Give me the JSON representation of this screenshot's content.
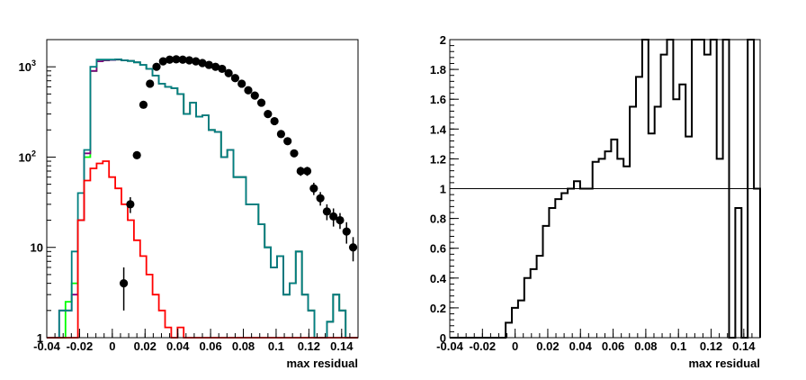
{
  "chart_data": [
    {
      "type": "histogram",
      "xlabel": "max residual",
      "xlim": [
        -0.04,
        0.15
      ],
      "xticks": [
        "-0.04",
        "-0.02",
        "0",
        "0.02",
        "0.04",
        "0.06",
        "0.08",
        "0.1",
        "0.12",
        "0.14"
      ],
      "yscale": "log",
      "ylim": [
        1,
        2000
      ],
      "yticks": [
        "1",
        "10",
        "10^2",
        "10^3"
      ],
      "grid": false,
      "bin_width": 0.0038,
      "series": [
        {
          "type": "step",
          "color": "#00ff00",
          "values": [
            1,
            1,
            1,
            2.5,
            4,
            20,
            100,
            900,
            1150,
            1180,
            1190,
            1200,
            1180,
            1160,
            1120,
            1050,
            950,
            800,
            650,
            600,
            580,
            500,
            300,
            400,
            280,
            290,
            200,
            190,
            100,
            120,
            60,
            60,
            30,
            30,
            18,
            10,
            6,
            8,
            3,
            4,
            9,
            3,
            2,
            1,
            1,
            1.5,
            3,
            2,
            1,
            1
          ]
        },
        {
          "type": "step",
          "color": "#800080",
          "values": [
            1,
            1,
            2,
            2,
            3,
            20,
            110,
            900,
            1150,
            1180,
            1190,
            1200,
            1180,
            1160,
            1120,
            1050,
            950,
            800,
            650,
            600,
            580,
            500,
            300,
            400,
            280,
            290,
            200,
            190,
            100,
            120,
            60,
            60,
            30,
            30,
            18,
            10,
            6,
            8,
            3,
            4,
            9,
            3,
            2,
            1,
            1,
            1.5,
            3,
            2,
            1,
            1
          ]
        },
        {
          "type": "step",
          "color": "#008080",
          "values": [
            1,
            1,
            2,
            2,
            9,
            40,
            120,
            1000,
            1200,
            1200,
            1200,
            1210,
            1180,
            1160,
            1120,
            1050,
            950,
            800,
            650,
            600,
            580,
            500,
            300,
            400,
            280,
            290,
            200,
            190,
            100,
            120,
            60,
            60,
            30,
            30,
            18,
            10,
            6,
            8,
            3,
            4,
            9,
            3,
            2,
            1,
            1,
            1.5,
            3,
            2,
            1,
            1
          ]
        },
        {
          "type": "step",
          "color": "#ff0000",
          "values": [
            1,
            1,
            1,
            1,
            1,
            20,
            55,
            75,
            85,
            90,
            60,
            45,
            30,
            20,
            12,
            8,
            5,
            3,
            2,
            1.3,
            1,
            1.3,
            1,
            1,
            1,
            1,
            1,
            1,
            1,
            1,
            1,
            1,
            1,
            1,
            1,
            1,
            1,
            1,
            1,
            1,
            1,
            1,
            1,
            1,
            1,
            1,
            1,
            1,
            1,
            1
          ]
        },
        {
          "type": "points",
          "color": "#000000",
          "x": [
            0.007,
            0.011,
            0.015,
            0.019,
            0.023,
            0.027,
            0.031,
            0.035,
            0.039,
            0.043,
            0.047,
            0.051,
            0.055,
            0.059,
            0.063,
            0.067,
            0.071,
            0.075,
            0.079,
            0.083,
            0.087,
            0.091,
            0.095,
            0.099,
            0.103,
            0.107,
            0.111,
            0.115,
            0.119,
            0.123,
            0.127,
            0.131,
            0.135,
            0.139,
            0.143,
            0.147
          ],
          "y": [
            4,
            30,
            105,
            380,
            650,
            1000,
            1150,
            1200,
            1210,
            1200,
            1180,
            1150,
            1100,
            1050,
            1000,
            950,
            850,
            750,
            650,
            550,
            480,
            400,
            300,
            250,
            180,
            150,
            110,
            70,
            70,
            45,
            35,
            25,
            22,
            20,
            15,
            10
          ],
          "yerr": [
            2,
            6,
            10,
            20,
            25,
            30,
            35,
            35,
            35,
            35,
            35,
            35,
            33,
            33,
            32,
            31,
            29,
            27,
            25,
            23,
            22,
            20,
            17,
            16,
            13,
            12,
            10,
            8,
            8,
            7,
            6,
            5,
            5,
            4,
            4,
            3
          ]
        }
      ]
    },
    {
      "type": "histogram",
      "xlabel": "max residual",
      "xlim": [
        -0.04,
        0.15
      ],
      "xticks": [
        "-0.04",
        "-0.02",
        "0",
        "0.02",
        "0.04",
        "0.06",
        "0.08",
        "0.1",
        "0.12",
        "0.14"
      ],
      "yscale": "linear",
      "ylim": [
        0,
        2
      ],
      "yticks": [
        "0",
        "0.2",
        "0.4",
        "0.6",
        "0.8",
        "1",
        "1.2",
        "1.4",
        "1.6",
        "1.8",
        "2"
      ],
      "reference_line": 1,
      "grid": false,
      "bin_width": 0.0038,
      "series": [
        {
          "type": "step",
          "color": "#000000",
          "values": [
            0,
            0,
            0,
            0,
            0,
            0,
            0,
            0,
            0,
            0.1,
            0.2,
            0.25,
            0.4,
            0.46,
            0.55,
            0.75,
            0.87,
            0.93,
            0.97,
            1.0,
            1.05,
            1.0,
            1.0,
            1.18,
            1.2,
            1.25,
            1.33,
            1.2,
            1.15,
            1.55,
            1.75,
            2.0,
            1.37,
            1.55,
            1.9,
            2.0,
            1.6,
            1.7,
            1.35,
            2.0,
            2.0,
            1.9,
            2.0,
            1.2,
            2.0,
            0,
            0.87,
            0,
            2.0,
            1.0,
            0.8,
            0.0,
            0.3,
            0
          ]
        }
      ]
    }
  ]
}
